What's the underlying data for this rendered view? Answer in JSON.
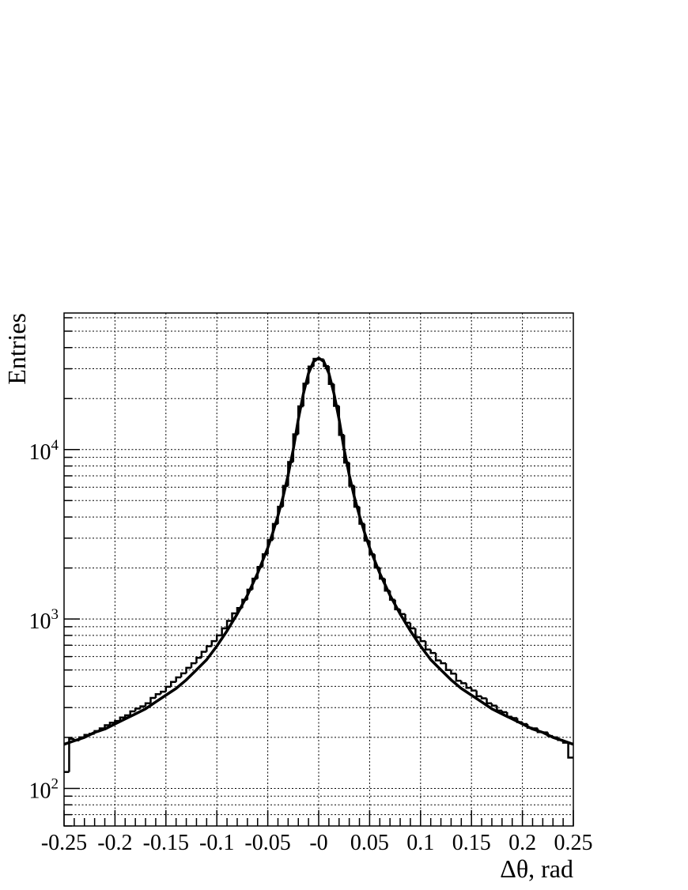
{
  "chart_data": {
    "type": "histogram",
    "xlabel": "Δθ, rad",
    "ylabel": "Entries",
    "log_y": true,
    "grid": true,
    "color": "#000000",
    "xlim": [
      -0.25,
      0.25
    ],
    "ylim": [
      60,
      64000
    ],
    "xticks": [
      -0.25,
      -0.2,
      -0.15,
      -0.1,
      -0.05,
      {
        "value": 0,
        "label": "-0"
      },
      0.05,
      0.1,
      0.15,
      0.2,
      0.25
    ],
    "x_minor_ticks": [
      -0.24,
      -0.23,
      -0.22,
      -0.21,
      -0.19,
      -0.18,
      -0.17,
      -0.16,
      -0.14,
      -0.13,
      -0.12,
      -0.11,
      -0.09,
      -0.08,
      -0.07,
      -0.06,
      -0.04,
      -0.03,
      -0.02,
      -0.01,
      0.01,
      0.02,
      0.03,
      0.04,
      0.06,
      0.07,
      0.08,
      0.09,
      0.11,
      0.12,
      0.13,
      0.14,
      0.16,
      0.17,
      0.18,
      0.19,
      0.21,
      0.22,
      0.23,
      0.24
    ],
    "yticks": [
      {
        "value": 100,
        "label": "10",
        "exponent": "2"
      },
      {
        "value": 1000,
        "label": "10",
        "exponent": "3"
      },
      {
        "value": 10000,
        "label": "10",
        "exponent": "4"
      }
    ],
    "y_minor_ticks": [
      60,
      70,
      80,
      90,
      200,
      300,
      400,
      500,
      600,
      700,
      800,
      900,
      2000,
      3000,
      4000,
      5000,
      6000,
      7000,
      8000,
      9000,
      20000,
      30000,
      40000,
      50000,
      60000
    ],
    "bins": [
      -0.25,
      -0.245,
      -0.24,
      -0.235,
      -0.23,
      -0.225,
      -0.22,
      -0.215,
      -0.21,
      -0.205,
      -0.2,
      -0.195,
      -0.19,
      -0.185,
      -0.18,
      -0.175,
      -0.17,
      -0.165,
      -0.16,
      -0.155,
      -0.15,
      -0.145,
      -0.14,
      -0.135,
      -0.13,
      -0.125,
      -0.12,
      -0.115,
      -0.11,
      -0.105,
      -0.1,
      -0.095,
      -0.09,
      -0.085,
      -0.08,
      -0.075,
      -0.07,
      -0.065,
      -0.06,
      -0.055,
      -0.05,
      -0.045,
      -0.04,
      -0.035,
      -0.03,
      -0.025,
      -0.02,
      -0.015,
      -0.01,
      -0.005,
      0,
      0.005,
      0.01,
      0.015,
      0.02,
      0.025,
      0.03,
      0.035,
      0.04,
      0.045,
      0.05,
      0.055,
      0.06,
      0.065,
      0.07,
      0.075,
      0.08,
      0.085,
      0.09,
      0.095,
      0.1,
      0.105,
      0.11,
      0.115,
      0.12,
      0.125,
      0.13,
      0.135,
      0.14,
      0.145,
      0.15,
      0.155,
      0.16,
      0.165,
      0.17,
      0.175,
      0.18,
      0.185,
      0.19,
      0.195,
      0.2,
      0.205,
      0.21,
      0.215,
      0.22,
      0.225,
      0.23,
      0.235,
      0.24,
      0.245,
      0.25
    ],
    "values": [
      125,
      196,
      192,
      200,
      207,
      210,
      218,
      226,
      236,
      244,
      250,
      262,
      270,
      285,
      296,
      305,
      318,
      342,
      360,
      372,
      398,
      425,
      452,
      478,
      515,
      548,
      590,
      640,
      690,
      740,
      800,
      880,
      975,
      1080,
      1160,
      1300,
      1490,
      1730,
      2030,
      2410,
      2920,
      3640,
      4600,
      6100,
      8450,
      12300,
      18000,
      24500,
      30900,
      34300,
      34100,
      31100,
      24400,
      18100,
      12200,
      8380,
      6120,
      4600,
      3650,
      2900,
      2410,
      2010,
      1730,
      1470,
      1300,
      1140,
      1070,
      950,
      880,
      780,
      740,
      660,
      630,
      570,
      548,
      500,
      476,
      432,
      418,
      392,
      378,
      350,
      340,
      318,
      308,
      288,
      282,
      265,
      260,
      246,
      240,
      228,
      226,
      215,
      214,
      204,
      200,
      193,
      186,
      152
    ],
    "fit": {
      "color": "#000000",
      "x": [
        -0.25,
        -0.24,
        -0.23,
        -0.22,
        -0.21,
        -0.2,
        -0.19,
        -0.18,
        -0.17,
        -0.16,
        -0.15,
        -0.14,
        -0.13,
        -0.12,
        -0.11,
        -0.1,
        -0.09,
        -0.08,
        -0.07,
        -0.06,
        -0.05,
        -0.045,
        -0.04,
        -0.035,
        -0.03,
        -0.025,
        -0.02,
        -0.015,
        -0.01,
        -0.005,
        0,
        0.005,
        0.01,
        0.015,
        0.02,
        0.025,
        0.03,
        0.035,
        0.04,
        0.045,
        0.05,
        0.06,
        0.07,
        0.08,
        0.09,
        0.1,
        0.11,
        0.12,
        0.13,
        0.14,
        0.15,
        0.16,
        0.17,
        0.18,
        0.19,
        0.2,
        0.21,
        0.22,
        0.23,
        0.24,
        0.25
      ],
      "values": [
        182,
        191,
        200,
        214,
        224,
        240,
        257,
        275,
        295,
        324,
        355,
        389,
        437,
        501,
        575,
        692,
        851,
        1070,
        1380,
        1860,
        2630,
        3240,
        4070,
        5250,
        7080,
        10000,
        15100,
        21400,
        28200,
        33100,
        34700,
        33100,
        28200,
        21400,
        15100,
        10000,
        7080,
        5250,
        4070,
        3240,
        2630,
        1860,
        1380,
        1070,
        851,
        692,
        575,
        501,
        437,
        389,
        355,
        324,
        295,
        275,
        257,
        240,
        224,
        214,
        200,
        191,
        182
      ]
    }
  }
}
